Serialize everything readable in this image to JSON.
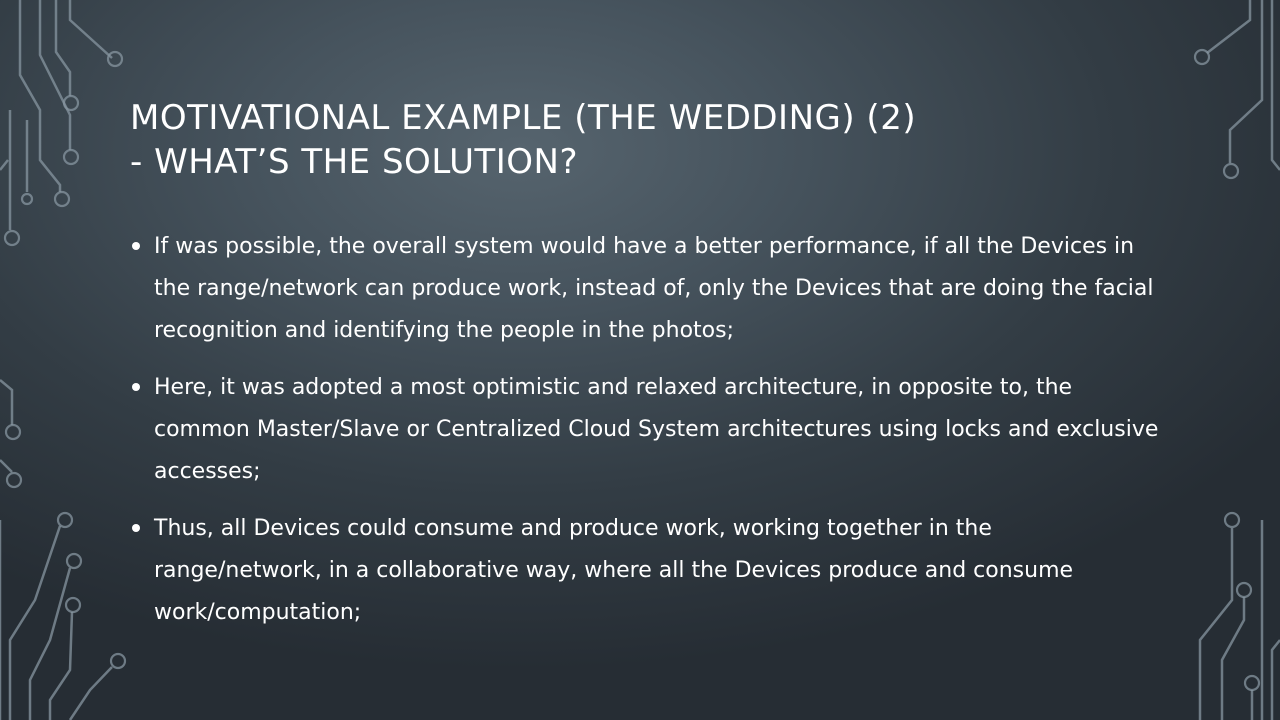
{
  "slide": {
    "title_line1": "MOTIVATIONAL EXAMPLE (THE WEDDING) (2)",
    "title_line2": "- WHAT’S THE SOLUTION?",
    "bullets": [
      "If was possible, the overall system would have a better performance, if all the Devices in the range/network can produce work, instead of, only the Devices that are doing the facial recognition and identifying the people in the photos;",
      "Here, it was adopted a most optimistic and relaxed architecture, in opposite to, the common Master/Slave or Centralized Cloud System architectures using locks and exclusive accesses;",
      "Thus, all Devices could consume and produce work, working together in the range/network, in a collaborative way, where all the Devices produce and consume work/computation;"
    ]
  },
  "theme": {
    "decoration": "circuit-lines",
    "text_color": "#ffffff",
    "line_color": "#8796a0"
  }
}
